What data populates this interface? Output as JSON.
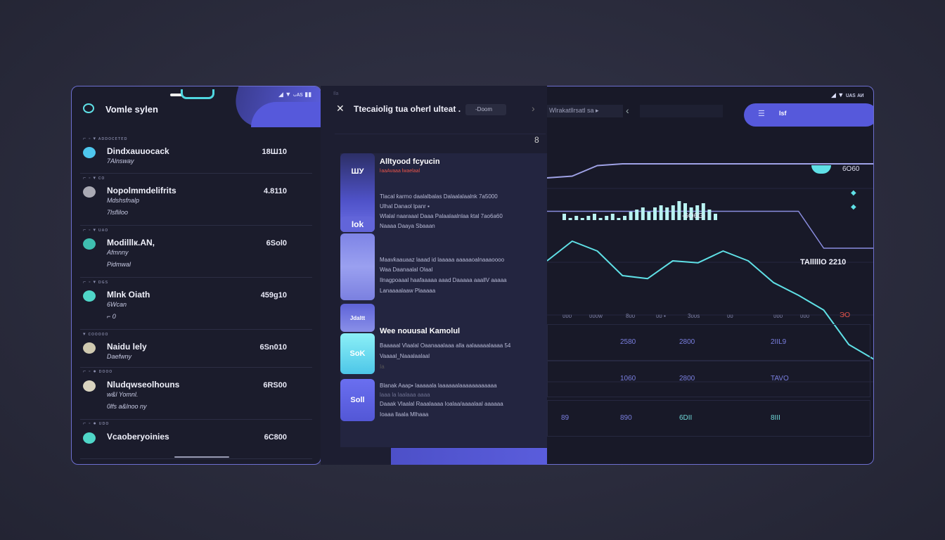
{
  "left_panel": {
    "status": "◢ ▼ ᴗᴀs ▮▮",
    "title": "Vomle sylen",
    "rows": [
      {
        "meta": "⌐ ◦ ▾  ᴀᴅᴅᴏᴄᴇᴛᴇᴅ",
        "name": "Dindxauuocack",
        "sub": "7Alnsway",
        "sub2": "",
        "value": "18Ш10"
      },
      {
        "meta": "⌐ ◦ ▾  ᴄᴏ",
        "name": "Nopolmmdelifrits",
        "sub": "Mdshsfnalp",
        "sub2": "7lsfliloo",
        "value": "4.8110"
      },
      {
        "meta": "⌐ ◦ ▾  ᴜᴀᴏ",
        "name": "Modilllк.AN,",
        "sub": "Afmnny",
        "sub2": "Pidmwal",
        "value": "6Sol0"
      },
      {
        "meta": "⌐ ◦ ▾  ᴅɢs",
        "name": "Mlnk Oiath",
        "sub": "6Wcan",
        "sub2": "⌐ 0",
        "value": "459g10"
      },
      {
        "meta": "▾ ᴄᴏᴏᴏᴏᴏ",
        "name": "Naidu lely",
        "sub": "Daefwny",
        "sub2": "",
        "value": "6Sn010"
      },
      {
        "meta": "⌐ ◦ ●  ᴅᴏᴏᴏ",
        "name": "Nludqwseolhouns",
        "sub": "w&l Yomnl.",
        "sub2": "0lfs a&lnoo ny",
        "value": "6RS00"
      },
      {
        "meta": "⌐ ◦ ●  ᴜᴅᴏ",
        "name": "Vcaoberyoinies",
        "sub": "",
        "sub2": "",
        "value": "6C800"
      }
    ]
  },
  "middle_panel": {
    "top_label": "Ila",
    "title": "Ttecaiolig tua oherl ulteat .",
    "chip": "-Doom",
    "badge": "8",
    "tiles": [
      "ШУ",
      "Iok",
      "Jdaltt",
      "SoK",
      "Soll"
    ],
    "card1": {
      "title": "Alltyood fcyucin",
      "accent": "ŀaaAvaaa lwaelaal",
      "lines": [
        "Tlacal ƙarmo daalalbalas Dalaalalaalnk 7a5000",
        "Ulhal Danaol lpanr ▪",
        "Wlalal naaraaal Daaa  Palaalaalnlaa ƙtal 7ao6a60",
        "Naaaa Daaya Sbaaan"
      ]
    },
    "card2": {
      "lines": [
        "Maavƙaauaaz laaad id   laaaaa aaaaaoalnaaaoooo",
        "Waa Daanaalal Olaal",
        "Ilnagpoaaal haafaaaaa aaad Daaaaa aaallV aaaaa",
        "Lanaaaalaaw Plaaaaa"
      ]
    },
    "card3": {
      "title": "Wee nouusal Kamolul",
      "lines": [
        "Baaaaal Vlaalal Oaanaaalaaa alla aalaaaaalaaaa 54",
        "Vaaaal_Naaalaalaal",
        "Ia"
      ]
    },
    "card4": {
      "lines": [
        "Blanak Aaap▪ Iaaaaala   laaaaaalaaaaaaaaaaaa",
        "laaa la laalaaa aaaa",
        "Daaak Vlaalal Raaalaaaa Ioalaa/aaaalaal aaaaaa",
        "Ioaaa llaala Mlhaaa"
      ]
    }
  },
  "right_panel": {
    "status": "◢ ▼ ᴜᴀs ᴀᴎ",
    "breadcrumb": "Wlrakatllrsatl  sa  ▸",
    "back_icon": "chevron-left-icon",
    "pill_label": "Isf",
    "chart": {
      "type": "line",
      "value_top": "6O60",
      "value_bars": "-6O6G-",
      "value_mid": "TAlllllO 2210",
      "end_marker": "ЭO",
      "ticks": [
        "ᴜᴜᴜ",
        "ᴜᴜᴜᴡ",
        "8ᴜᴜ",
        "ᴜᴜ ▪",
        "3ᴜᴜs",
        "ᴜᴜ",
        "ᴜᴜᴜ",
        "ᴜᴜᴜ"
      ],
      "bars": [
        3,
        1,
        2,
        1,
        2,
        3,
        1,
        2,
        3,
        1,
        2,
        4,
        5,
        6,
        4,
        6,
        7,
        6,
        7,
        9,
        8,
        6,
        7,
        8,
        5,
        3
      ],
      "upper_line": [
        0.2,
        0.25,
        0.55,
        0.6,
        0.6,
        0.6,
        0.6,
        0.6,
        0.6,
        0.6,
        0.6,
        0.6,
        0.6,
        0.6
      ],
      "mid_line": [
        0.55,
        0.55,
        0.55,
        0.55,
        0.55,
        0.55,
        0.55,
        0.55,
        0.55,
        0.55,
        0.55,
        0.2,
        0.2,
        0.2
      ],
      "wave_line": [
        0.3,
        0.5,
        0.4,
        0.15,
        0.12,
        0.3,
        0.28,
        0.4,
        0.3,
        0.08,
        -0.05,
        -0.2,
        -0.55,
        -0.7
      ]
    },
    "table": [
      [
        "",
        "",
        "2580",
        "2800",
        "",
        "2IIL9"
      ],
      [
        "",
        "",
        "1060",
        "2800",
        "",
        "TAVO"
      ],
      [
        "",
        "89",
        "890",
        "6DII",
        "",
        "8III"
      ]
    ],
    "colors": {
      "accent": "#5659db",
      "cyan": "#5fe0e6",
      "red": "#e8544a",
      "border": "#6d6fd0"
    }
  }
}
